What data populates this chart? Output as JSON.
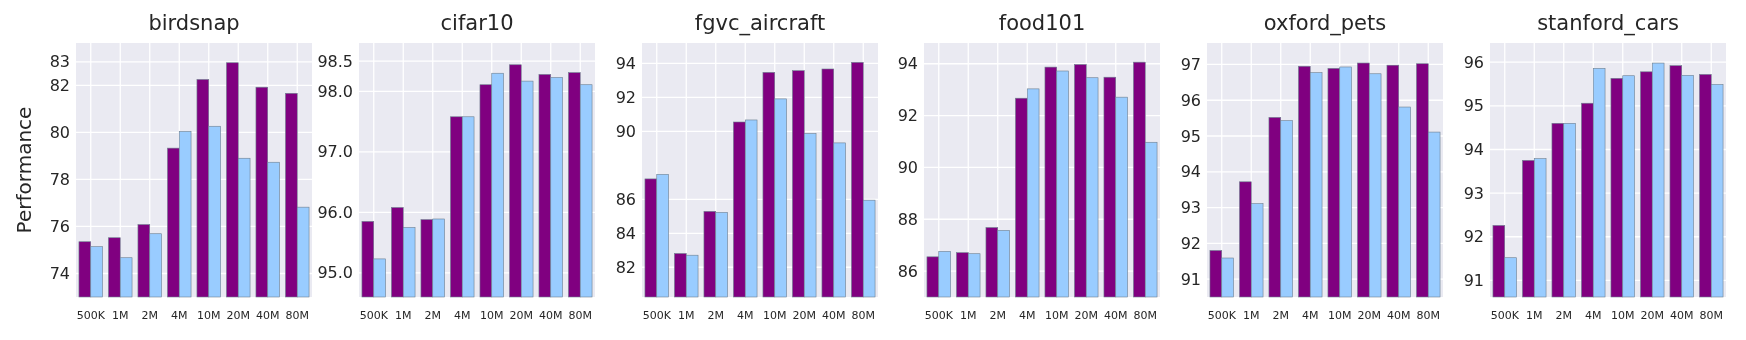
{
  "chart_data": [
    {
      "type": "bar",
      "title": "birdsnap",
      "ylabel": "Performance",
      "categories": [
        "500K",
        "1M",
        "2M",
        "4M",
        "10M",
        "20M",
        "40M",
        "80M"
      ],
      "grid": true,
      "ylim": [
        73,
        83.8
      ],
      "yticks": [
        74,
        76,
        78,
        80,
        82,
        83
      ],
      "series": [
        {
          "color": "#800080",
          "values": [
            75.35,
            75.52,
            76.08,
            79.33,
            82.25,
            82.96,
            81.92,
            81.66
          ]
        },
        {
          "color": "#99ccff",
          "values": [
            75.14,
            74.67,
            75.69,
            80.04,
            80.26,
            78.9,
            78.73,
            76.82
          ]
        }
      ]
    },
    {
      "type": "bar",
      "title": "cifar10",
      "categories": [
        "500K",
        "1M",
        "2M",
        "4M",
        "10M",
        "20M",
        "40M",
        "80M"
      ],
      "grid": true,
      "ylim": [
        94.6,
        98.8
      ],
      "yticks": [
        {
          "value": 95,
          "label": "95.0"
        },
        {
          "value": 96,
          "label": "96.0"
        },
        {
          "value": 97,
          "label": "97.0"
        },
        {
          "value": 98,
          "label": "98.0"
        },
        98.5
      ],
      "series": [
        {
          "color": "#800080",
          "values": [
            95.85,
            96.08,
            95.88,
            97.58,
            98.11,
            98.44,
            98.28,
            98.31
          ]
        },
        {
          "color": "#99ccff",
          "values": [
            95.23,
            95.75,
            95.89,
            97.58,
            98.3,
            98.17,
            98.23,
            98.11
          ]
        }
      ]
    },
    {
      "type": "bar",
      "title": "fgvc_aircraft",
      "categories": [
        "500K",
        "1M",
        "2M",
        "4M",
        "10M",
        "20M",
        "40M",
        "80M"
      ],
      "grid": true,
      "ylim": [
        80.25,
        95.2
      ],
      "yticks": [
        82,
        84,
        86,
        90,
        92,
        94
      ],
      "series": [
        {
          "color": "#800080",
          "values": [
            87.2,
            82.81,
            85.29,
            90.55,
            93.47,
            93.57,
            93.67,
            94.06
          ]
        },
        {
          "color": "#99ccff",
          "values": [
            87.47,
            82.71,
            85.23,
            90.67,
            91.91,
            89.87,
            89.32,
            85.95
          ]
        }
      ]
    },
    {
      "type": "bar",
      "title": "food101",
      "categories": [
        "500K",
        "1M",
        "2M",
        "4M",
        "10M",
        "20M",
        "40M",
        "80M"
      ],
      "grid": true,
      "ylim": [
        85,
        94.8
      ],
      "yticks": [
        86,
        88,
        90,
        92,
        94
      ],
      "series": [
        {
          "color": "#800080",
          "values": [
            86.55,
            86.71,
            87.68,
            92.67,
            93.87,
            93.97,
            93.48,
            94.06
          ]
        },
        {
          "color": "#99ccff",
          "values": [
            86.76,
            86.67,
            87.57,
            93.03,
            93.72,
            93.46,
            92.71,
            90.97
          ]
        }
      ]
    },
    {
      "type": "bar",
      "title": "oxford_pets",
      "categories": [
        "500K",
        "1M",
        "2M",
        "4M",
        "10M",
        "20M",
        "40M",
        "80M"
      ],
      "grid": true,
      "ylim": [
        90.5,
        97.6
      ],
      "yticks": [
        91,
        92,
        93,
        94,
        95,
        96,
        97
      ],
      "series": [
        {
          "color": "#800080",
          "values": [
            91.8,
            93.72,
            95.52,
            96.95,
            96.89,
            97.04,
            96.98,
            97.02
          ]
        },
        {
          "color": "#99ccff",
          "values": [
            91.59,
            93.11,
            95.43,
            96.77,
            96.93,
            96.74,
            95.81,
            95.11
          ]
        }
      ]
    },
    {
      "type": "bar",
      "title": "stanford_cars",
      "categories": [
        "500K",
        "1M",
        "2M",
        "4M",
        "10M",
        "20M",
        "40M",
        "80M"
      ],
      "grid": true,
      "ylim": [
        90.62,
        96.44
      ],
      "yticks": [
        91,
        92,
        93,
        94,
        95,
        96
      ],
      "series": [
        {
          "color": "#800080",
          "values": [
            92.26,
            93.75,
            94.6,
            95.06,
            95.63,
            95.78,
            95.92,
            95.72
          ]
        },
        {
          "color": "#99ccff",
          "values": [
            91.52,
            93.79,
            94.6,
            95.86,
            95.69,
            95.98,
            95.7,
            95.49
          ]
        }
      ]
    }
  ]
}
